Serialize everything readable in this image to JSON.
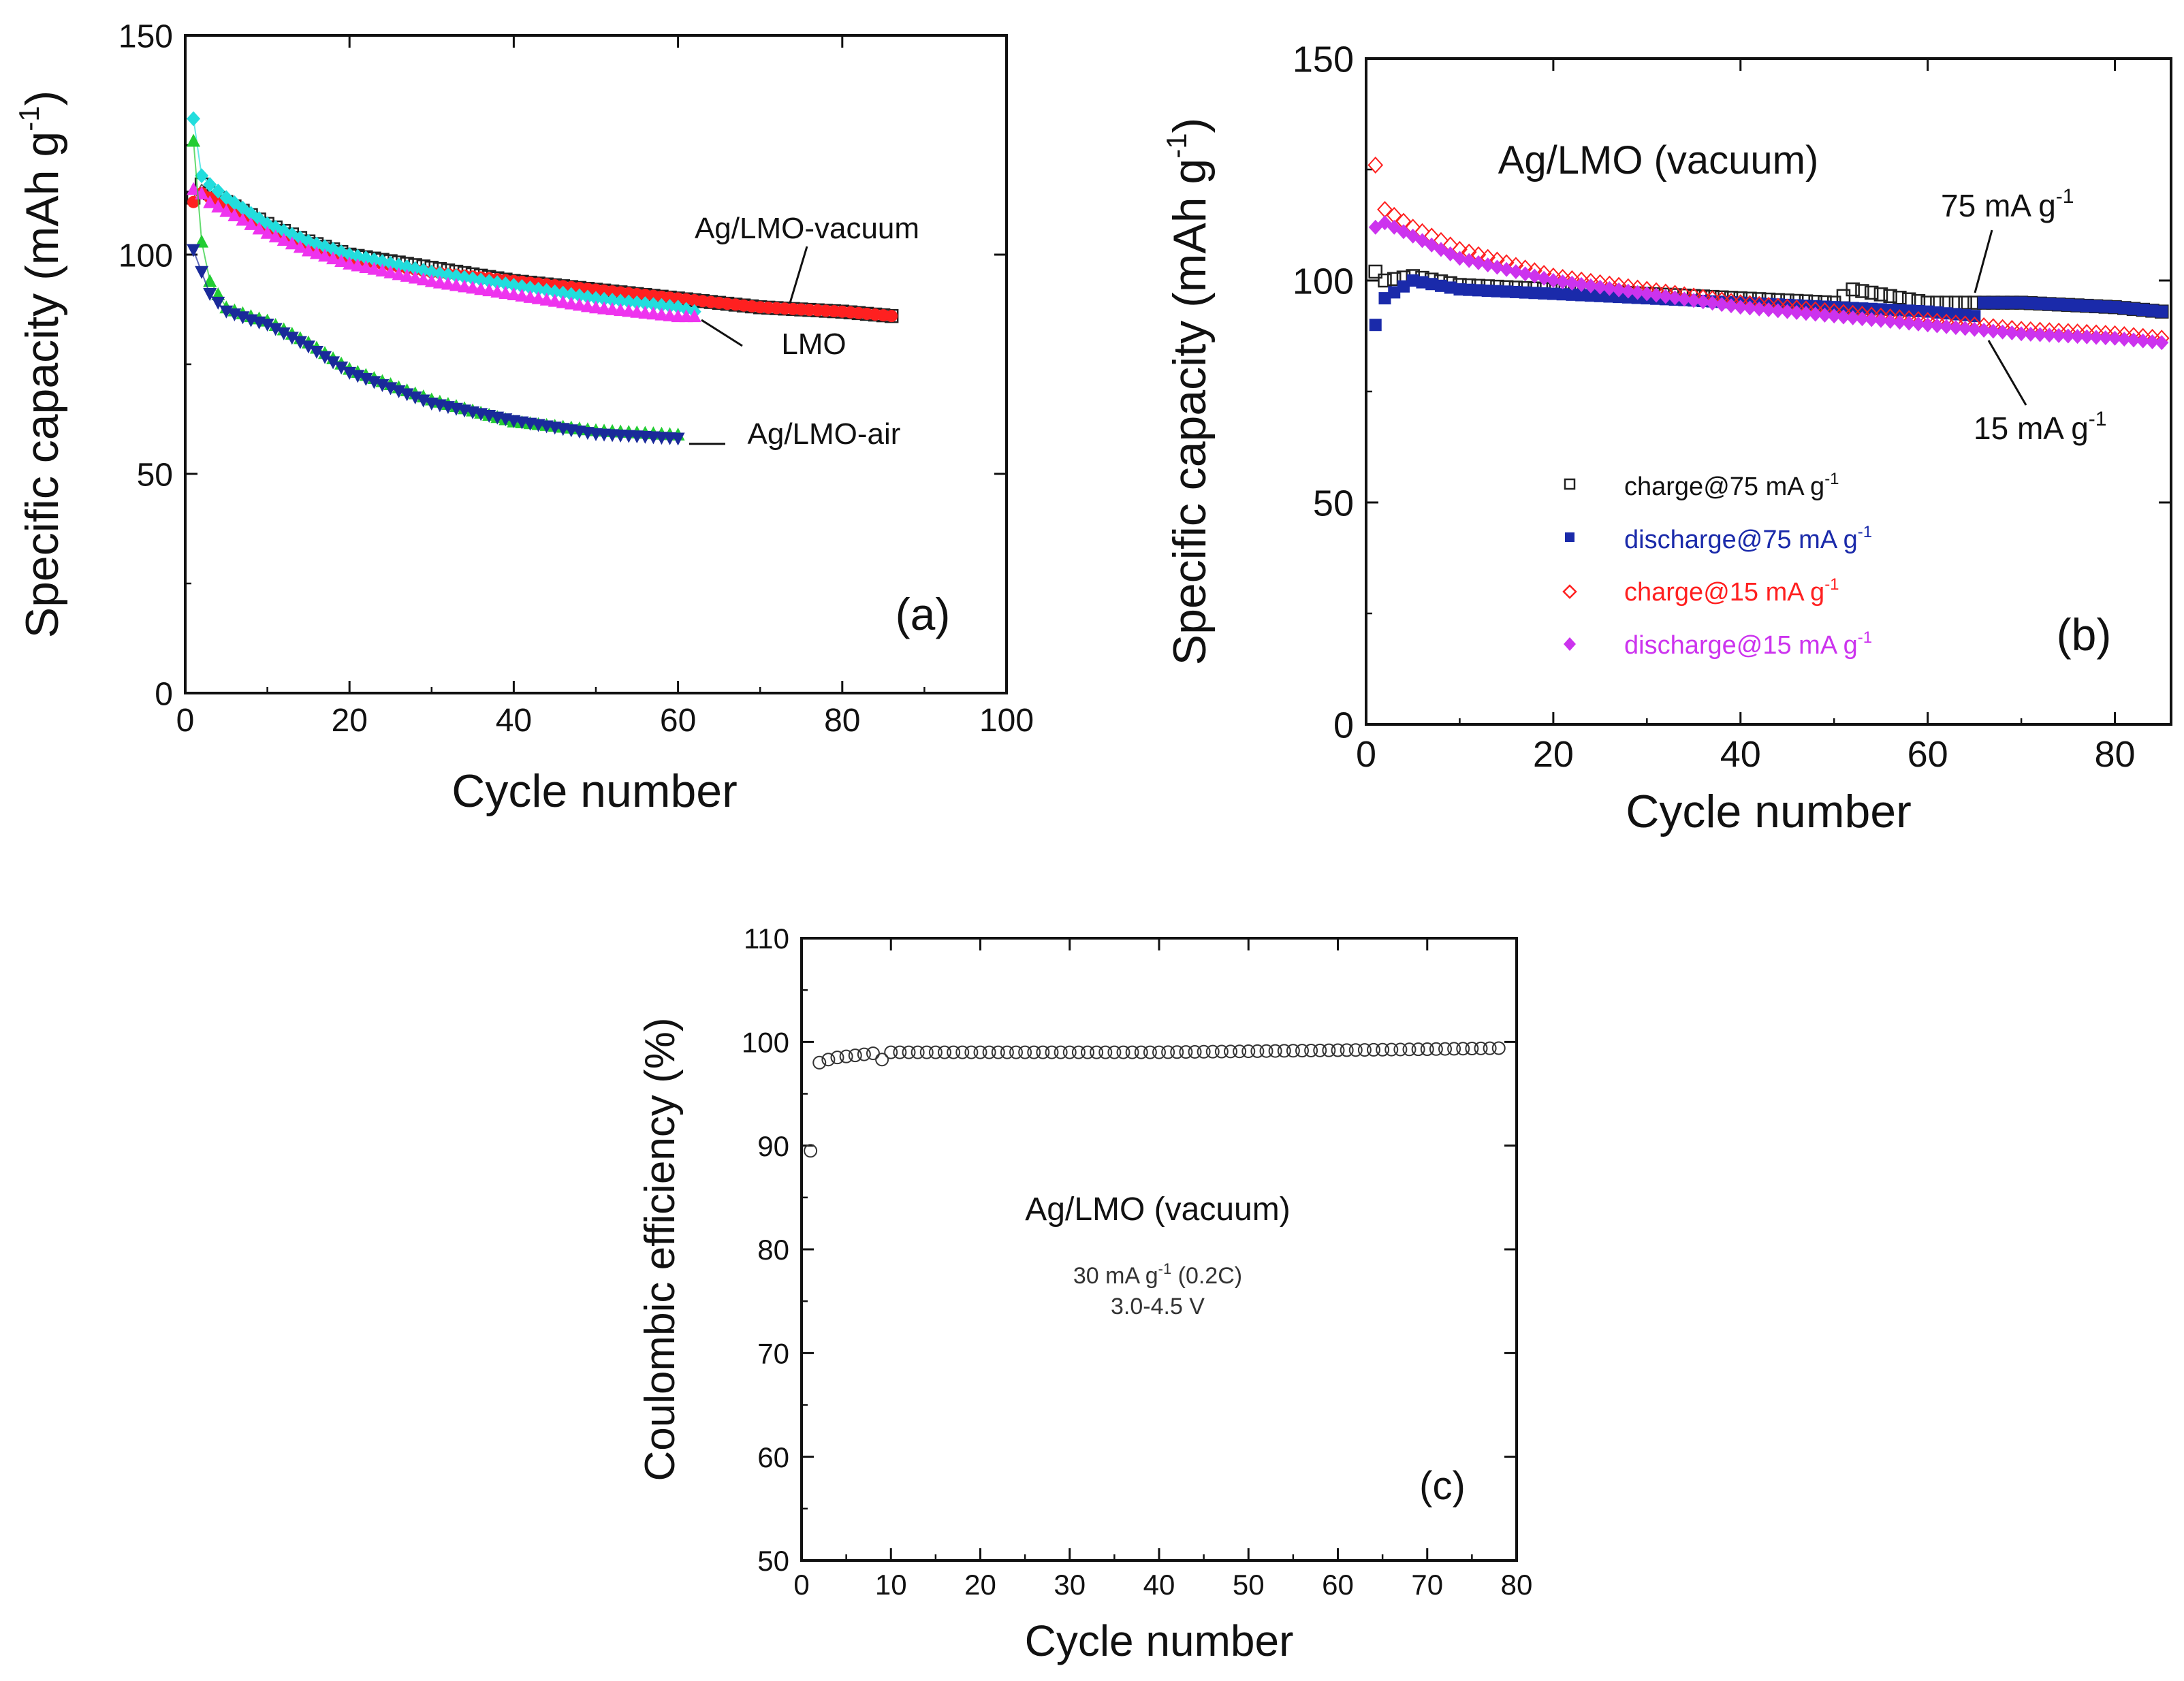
{
  "chart_data": [
    {
      "panel": "(a)",
      "type": "scatter",
      "xlabel": "Cycle number",
      "ylabel": "Specific capacity (mAh g",
      "ylabel_sup": "-1",
      "ylabel_end": ")",
      "xlim": [
        0,
        100
      ],
      "ylim": [
        0,
        150
      ],
      "xticks": [
        0,
        20,
        40,
        60,
        80,
        100
      ],
      "yticks": [
        0,
        50,
        100,
        150
      ],
      "annotations": [
        "Ag/LMO-vacuum",
        "LMO",
        "Ag/LMO-air"
      ],
      "series": [
        {
          "name": "Ag/LMO-vacuum charge",
          "color": "#222222",
          "marker": "square-open",
          "x": [
            1,
            2,
            3,
            5,
            10,
            15,
            20,
            30,
            40,
            50,
            60,
            70,
            80,
            86
          ],
          "y": [
            113,
            116,
            114,
            112,
            107,
            103,
            100,
            97,
            94,
            92,
            90,
            88,
            87,
            86
          ]
        },
        {
          "name": "Ag/LMO-vacuum discharge",
          "color": "#ff2020",
          "marker": "circle",
          "x": [
            1,
            2,
            3,
            5,
            10,
            15,
            20,
            30,
            40,
            50,
            60,
            70,
            80,
            86
          ],
          "y": [
            112,
            114,
            113,
            111,
            106,
            102,
            99,
            96,
            94,
            92,
            90,
            88,
            87,
            86
          ]
        },
        {
          "name": "LMO charge",
          "color": "#22dddd",
          "marker": "diamond",
          "x": [
            1,
            2,
            3,
            5,
            10,
            15,
            20,
            30,
            40,
            50,
            60,
            62
          ],
          "y": [
            131,
            118,
            116,
            113,
            107,
            103,
            100,
            96,
            93,
            90,
            88,
            87
          ]
        },
        {
          "name": "LMO discharge",
          "color": "#ee33ee",
          "marker": "triangle",
          "x": [
            1,
            2,
            3,
            5,
            10,
            15,
            20,
            30,
            40,
            50,
            60,
            62
          ],
          "y": [
            115,
            114,
            112,
            110,
            105,
            101,
            98,
            94,
            91,
            88,
            86,
            86
          ]
        },
        {
          "name": "Ag/LMO-air charge",
          "color": "#22cc33",
          "marker": "triangle",
          "x": [
            1,
            2,
            3,
            5,
            8,
            10,
            15,
            20,
            30,
            40,
            50,
            60
          ],
          "y": [
            126,
            103,
            94,
            88,
            86,
            85,
            80,
            74,
            67,
            62,
            60,
            59
          ]
        },
        {
          "name": "Ag/LMO-air discharge",
          "color": "#1a2a9a",
          "marker": "triangle-down",
          "x": [
            1,
            2,
            3,
            5,
            8,
            10,
            15,
            20,
            30,
            40,
            50,
            60
          ],
          "y": [
            101,
            96,
            91,
            87,
            85,
            84,
            79,
            73,
            66,
            62,
            59,
            58
          ]
        }
      ]
    },
    {
      "panel": "(b)",
      "type": "scatter",
      "title": "Ag/LMO (vacuum)",
      "xlabel": "Cycle number",
      "ylabel": "Specific capacity (mAh g",
      "ylabel_sup": "-1",
      "ylabel_end": ")",
      "xlim": [
        0,
        86
      ],
      "ylim": [
        0,
        150
      ],
      "xticks": [
        0,
        20,
        40,
        60,
        80
      ],
      "yticks": [
        0,
        50,
        100,
        150
      ],
      "annotations": [
        {
          "label": "75 mA g",
          "sup": "-1"
        },
        {
          "label": "15 mA g",
          "sup": "-1"
        }
      ],
      "legend": [
        {
          "label": "charge@75 mA g",
          "sup": "-1",
          "color": "#222222",
          "marker": "square-open"
        },
        {
          "label": "discharge@75 mA g",
          "sup": "-1",
          "color": "#1a2aaa",
          "marker": "square"
        },
        {
          "label": "charge@15 mA g",
          "sup": "-1",
          "color": "#ff2020",
          "marker": "diamond-open"
        },
        {
          "label": "discharge@15 mA g",
          "sup": "-1",
          "color": "#cc33ee",
          "marker": "diamond"
        }
      ],
      "series": [
        {
          "name": "charge@75 mA g-1",
          "color": "#222222",
          "marker": "square-open",
          "x": [
            1,
            2,
            5,
            10,
            20,
            30,
            40,
            50,
            52,
            60,
            65,
            70,
            80,
            85
          ],
          "y": [
            102,
            100,
            101,
            99,
            98,
            97,
            96,
            95,
            98,
            95,
            95,
            95,
            94,
            93
          ]
        },
        {
          "name": "discharge@75 mA g-1",
          "color": "#1a2aaa",
          "marker": "square",
          "x": [
            1,
            2,
            5,
            10,
            20,
            30,
            40,
            50,
            60,
            65,
            66,
            70,
            80,
            85
          ],
          "y": [
            90,
            96,
            100,
            98,
            97,
            96,
            95,
            94,
            93,
            92,
            95,
            95,
            94,
            93
          ]
        },
        {
          "name": "charge@15 mA g-1",
          "color": "#ff2020",
          "marker": "diamond-open",
          "x": [
            1,
            2,
            5,
            10,
            20,
            30,
            40,
            50,
            60,
            70,
            80,
            85
          ],
          "y": [
            126,
            116,
            112,
            107,
            101,
            98,
            95,
            93,
            91,
            89,
            88,
            87
          ]
        },
        {
          "name": "discharge@15 mA g-1",
          "color": "#cc33ee",
          "marker": "diamond",
          "x": [
            1,
            2,
            5,
            10,
            20,
            30,
            40,
            50,
            60,
            70,
            80,
            85
          ],
          "y": [
            112,
            113,
            110,
            105,
            100,
            97,
            94,
            92,
            90,
            88,
            87,
            86
          ]
        }
      ]
    },
    {
      "panel": "(c)",
      "type": "scatter",
      "title": "Ag/LMO (vacuum)",
      "subtitle_lines": [
        {
          "text": "30 mA g",
          "sup": "-1",
          "end": " (0.2C)"
        },
        {
          "text": "3.0-4.5 V"
        }
      ],
      "xlabel": "Cycle number",
      "ylabel": "Coulombic efficiency (%)",
      "xlim": [
        0,
        80
      ],
      "ylim": [
        50,
        110
      ],
      "xticks": [
        0,
        10,
        20,
        30,
        40,
        50,
        60,
        70,
        80
      ],
      "yticks": [
        50,
        60,
        70,
        80,
        90,
        100,
        110
      ],
      "series": [
        {
          "name": "Coulombic efficiency",
          "color": "#333333",
          "marker": "circle-open",
          "x": [
            1,
            2,
            3,
            4,
            5,
            6,
            7,
            8,
            9,
            10,
            20,
            30,
            40,
            50,
            60,
            70,
            78
          ],
          "y": [
            89.5,
            98,
            98.3,
            98.5,
            98.6,
            98.7,
            98.8,
            98.9,
            98.3,
            99,
            99,
            99,
            99,
            99.1,
            99.2,
            99.3,
            99.4
          ]
        }
      ]
    }
  ]
}
